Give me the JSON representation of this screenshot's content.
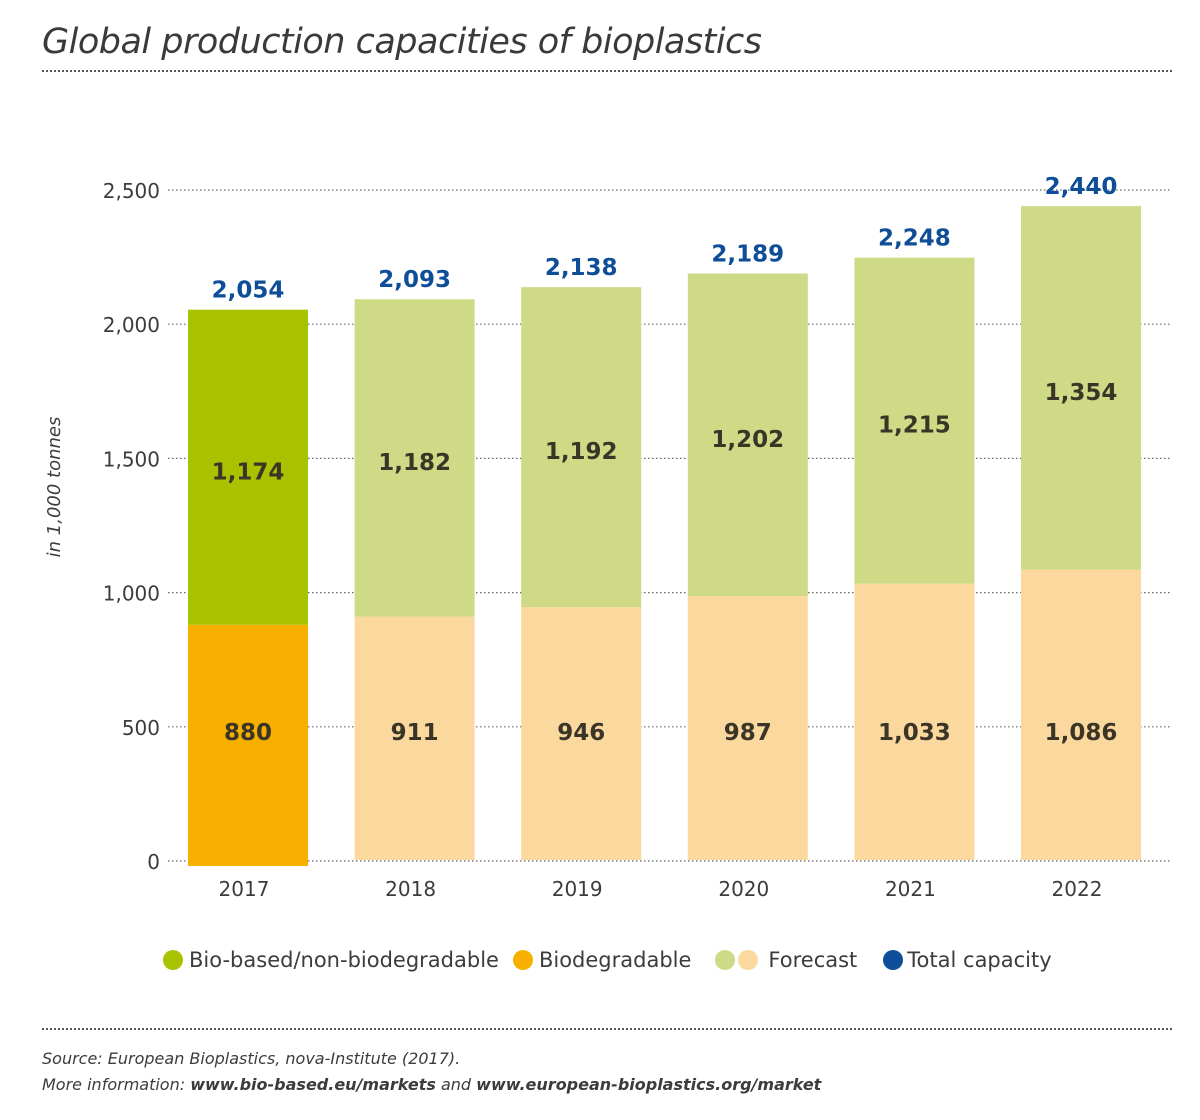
{
  "chart_data": {
    "type": "bar",
    "stacked": true,
    "title": "Global production capacities of bioplastics",
    "ylabel": "in 1,000 tonnes",
    "xlabel": "",
    "ylim": [
      0,
      2500
    ],
    "yticks": [
      0,
      500,
      1000,
      1500,
      2000,
      2500
    ],
    "ytick_labels": [
      "0",
      "500",
      "1,000",
      "1,500",
      "2,000",
      "2,500"
    ],
    "grid": true,
    "categories": [
      "2017",
      "2018",
      "2019",
      "2020",
      "2021",
      "2022"
    ],
    "forecast": [
      false,
      true,
      true,
      true,
      true,
      true
    ],
    "series": [
      {
        "name": "Biodegradable",
        "values": [
          880,
          911,
          946,
          987,
          1033,
          1086
        ],
        "labels": [
          "880",
          "911",
          "946",
          "987",
          "1,033",
          "1,086"
        ],
        "color": "#f7b000",
        "forecast_color": "#fbd89d"
      },
      {
        "name": "Bio-based/non-biodegradable",
        "values": [
          1174,
          1182,
          1192,
          1202,
          1215,
          1354
        ],
        "labels": [
          "1,174",
          "1,182",
          "1,192",
          "1,202",
          "1,215",
          "1,354"
        ],
        "color": "#a9c200",
        "forecast_color": "#cfda87"
      }
    ],
    "totals": {
      "name": "Total capacity",
      "values": [
        2054,
        2093,
        2138,
        2189,
        2248,
        2440
      ],
      "labels": [
        "2,054",
        "2,093",
        "2,138",
        "2,189",
        "2,248",
        "2,440"
      ],
      "color": "#0e4d97"
    },
    "legend_position": "bottom"
  },
  "legend": {
    "items": [
      {
        "label": "Bio-based/non-biodegradable",
        "colors": [
          "#a9c200"
        ]
      },
      {
        "label": "Biodegradable",
        "colors": [
          "#f7b000"
        ]
      },
      {
        "label": "Forecast",
        "colors": [
          "#cfda87",
          "#fbd89d"
        ]
      },
      {
        "label": "Total capacity",
        "colors": [
          "#0e4d97"
        ]
      }
    ]
  },
  "footer": {
    "source": "Source: European Bioplastics, nova-Institute (2017).",
    "more_prefix": "More information: ",
    "link1": "www.bio-based.eu/markets",
    "and": " and ",
    "link2": "www.european-bioplastics.org/market"
  }
}
